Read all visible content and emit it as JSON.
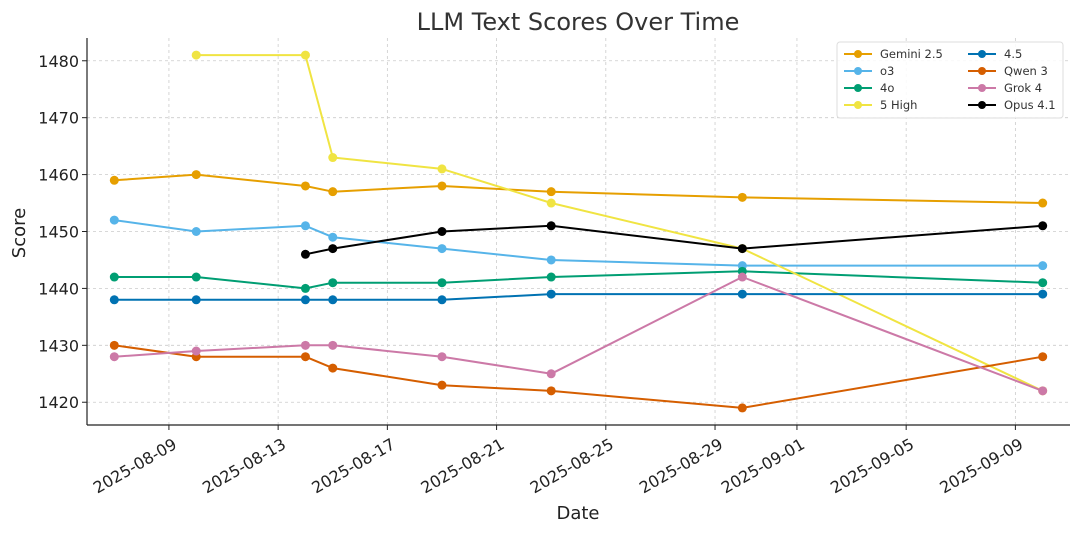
{
  "chart_data": {
    "type": "line",
    "title": "LLM Text Scores Over Time",
    "xlabel": "Date",
    "ylabel": "Score",
    "xlim": [
      "2025-08-06",
      "2025-09-11"
    ],
    "ylim": [
      1416,
      1484
    ],
    "yticks": [
      1420,
      1430,
      1440,
      1450,
      1460,
      1470,
      1480
    ],
    "xticks": [
      "2025-08-09",
      "2025-08-13",
      "2025-08-17",
      "2025-08-21",
      "2025-08-25",
      "2025-08-29",
      "2025-09-01",
      "2025-09-05",
      "2025-09-09"
    ],
    "legend_position": "top-right",
    "grid": true,
    "series": [
      {
        "name": "Gemini 2.5",
        "color": "#E69F00",
        "points": [
          [
            "2025-08-07",
            1459
          ],
          [
            "2025-08-10",
            1460
          ],
          [
            "2025-08-14",
            1458
          ],
          [
            "2025-08-15",
            1457
          ],
          [
            "2025-08-19",
            1458
          ],
          [
            "2025-08-23",
            1457
          ],
          [
            "2025-08-30",
            1456
          ],
          [
            "2025-09-10",
            1455
          ]
        ]
      },
      {
        "name": "o3",
        "color": "#56B4E9",
        "points": [
          [
            "2025-08-07",
            1452
          ],
          [
            "2025-08-10",
            1450
          ],
          [
            "2025-08-14",
            1451
          ],
          [
            "2025-08-15",
            1449
          ],
          [
            "2025-08-19",
            1447
          ],
          [
            "2025-08-23",
            1445
          ],
          [
            "2025-08-30",
            1444
          ],
          [
            "2025-09-10",
            1444
          ]
        ]
      },
      {
        "name": "4o",
        "color": "#009E73",
        "points": [
          [
            "2025-08-07",
            1442
          ],
          [
            "2025-08-10",
            1442
          ],
          [
            "2025-08-14",
            1440
          ],
          [
            "2025-08-15",
            1441
          ],
          [
            "2025-08-19",
            1441
          ],
          [
            "2025-08-23",
            1442
          ],
          [
            "2025-08-30",
            1443
          ],
          [
            "2025-09-10",
            1441
          ]
        ]
      },
      {
        "name": "5 High",
        "color": "#F0E442",
        "points": [
          [
            "2025-08-10",
            1481
          ],
          [
            "2025-08-14",
            1481
          ],
          [
            "2025-08-15",
            1463
          ],
          [
            "2025-08-19",
            1461
          ],
          [
            "2025-08-23",
            1455
          ],
          [
            "2025-08-30",
            1447
          ],
          [
            "2025-09-10",
            1422
          ]
        ]
      },
      {
        "name": "4.5",
        "color": "#0072B2",
        "points": [
          [
            "2025-08-07",
            1438
          ],
          [
            "2025-08-10",
            1438
          ],
          [
            "2025-08-14",
            1438
          ],
          [
            "2025-08-15",
            1438
          ],
          [
            "2025-08-19",
            1438
          ],
          [
            "2025-08-23",
            1439
          ],
          [
            "2025-08-30",
            1439
          ],
          [
            "2025-09-10",
            1439
          ]
        ]
      },
      {
        "name": "Qwen 3",
        "color": "#D55E00",
        "points": [
          [
            "2025-08-07",
            1430
          ],
          [
            "2025-08-10",
            1428
          ],
          [
            "2025-08-14",
            1428
          ],
          [
            "2025-08-15",
            1426
          ],
          [
            "2025-08-19",
            1423
          ],
          [
            "2025-08-23",
            1422
          ],
          [
            "2025-08-30",
            1419
          ],
          [
            "2025-09-10",
            1428
          ]
        ]
      },
      {
        "name": "Grok 4",
        "color": "#CC79A7",
        "points": [
          [
            "2025-08-07",
            1428
          ],
          [
            "2025-08-10",
            1429
          ],
          [
            "2025-08-14",
            1430
          ],
          [
            "2025-08-15",
            1430
          ],
          [
            "2025-08-19",
            1428
          ],
          [
            "2025-08-23",
            1425
          ],
          [
            "2025-08-30",
            1442
          ],
          [
            "2025-09-10",
            1422
          ]
        ]
      },
      {
        "name": "Opus 4.1",
        "color": "#000000",
        "points": [
          [
            "2025-08-14",
            1446
          ],
          [
            "2025-08-15",
            1447
          ],
          [
            "2025-08-19",
            1450
          ],
          [
            "2025-08-23",
            1451
          ],
          [
            "2025-08-30",
            1447
          ],
          [
            "2025-09-10",
            1451
          ]
        ]
      }
    ]
  }
}
